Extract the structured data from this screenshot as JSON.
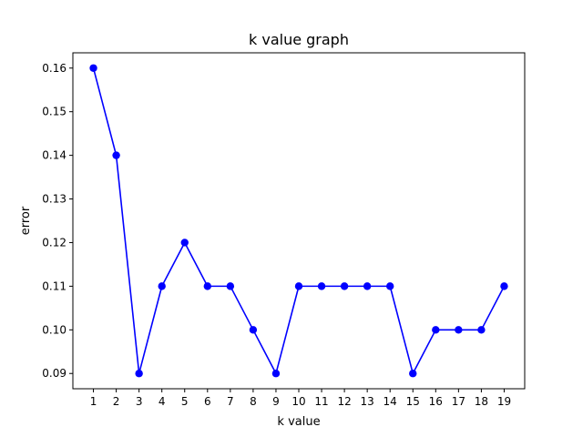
{
  "chart_data": {
    "type": "line",
    "title": "k value graph",
    "xlabel": "k value",
    "ylabel": "error",
    "x": [
      1,
      2,
      3,
      4,
      5,
      6,
      7,
      8,
      9,
      10,
      11,
      12,
      13,
      14,
      15,
      16,
      17,
      18,
      19
    ],
    "series": [
      {
        "values": [
          0.16,
          0.14,
          0.09,
          0.11,
          0.12,
          0.11,
          0.11,
          0.1,
          0.09,
          0.11,
          0.11,
          0.11,
          0.11,
          0.11,
          0.09,
          0.1,
          0.1,
          0.1,
          0.11
        ],
        "color": "#0000ff",
        "marker": "circle"
      }
    ],
    "xticks": [
      "1",
      "2",
      "3",
      "4",
      "5",
      "6",
      "7",
      "8",
      "9",
      "10",
      "11",
      "12",
      "13",
      "14",
      "15",
      "16",
      "17",
      "18",
      "19"
    ],
    "yticks": [
      "0.09",
      "0.10",
      "0.11",
      "0.12",
      "0.13",
      "0.14",
      "0.15",
      "0.16"
    ],
    "xlim": [
      0.1,
      19.9
    ],
    "ylim": [
      0.0865,
      0.1635
    ],
    "grid": false,
    "legend": "none"
  }
}
